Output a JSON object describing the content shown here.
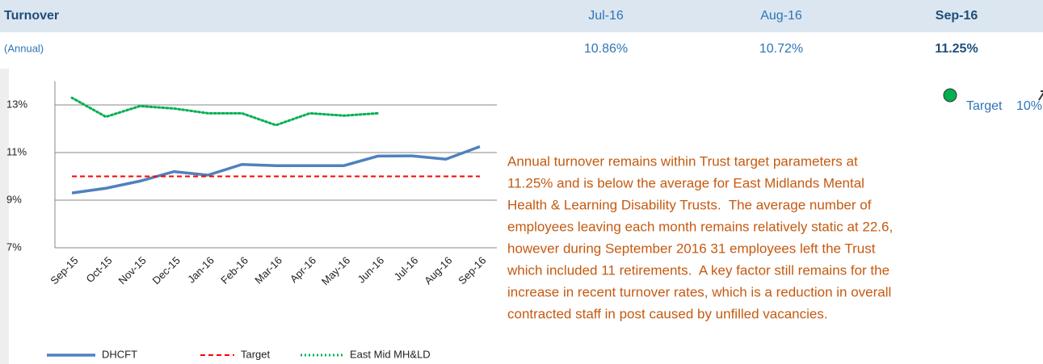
{
  "header": {
    "title": "Turnover",
    "subtitle": "(Annual)",
    "months": [
      "Jul-16",
      "Aug-16",
      "Sep-16"
    ],
    "values": [
      "10.86%",
      "10.72%",
      "11.25%"
    ]
  },
  "target": {
    "label": "Target",
    "value": "10%"
  },
  "commentary": [
    "Annual turnover remains within Trust target parameters at",
    "11.25% and is below the average for East Midlands Mental",
    "Health & Learning Disability Trusts.  The average number of",
    "employees leaving each month remains relatively static at 22.6,",
    "however during September 2016 31 employees left the Trust",
    "which included 11 retirements.  A key factor still remains for the",
    "increase in recent turnover rates, which is a reduction in overall",
    "contracted staff in post caused by unfilled vacancies."
  ],
  "chart_data": {
    "type": "line",
    "categories": [
      "Sep-15",
      "Oct-15",
      "Nov-15",
      "Dec-15",
      "Jan-16",
      "Feb-16",
      "Mar-16",
      "Apr-16",
      "May-16",
      "Jun-16",
      "Jul-16",
      "Aug-16",
      "Sep-16"
    ],
    "series": [
      {
        "name": "DHCFT",
        "color": "#4f81bd",
        "values": [
          9.3,
          9.5,
          9.8,
          10.2,
          10.05,
          10.5,
          10.45,
          10.45,
          10.45,
          10.85,
          10.86,
          10.72,
          11.25
        ]
      },
      {
        "name": "Target",
        "color": "#ff0000",
        "values": [
          10,
          10,
          10,
          10,
          10,
          10,
          10,
          10,
          10,
          10,
          10,
          10,
          10
        ]
      },
      {
        "name": "East Mid MH&LD",
        "color": "#00b050",
        "values": [
          13.3,
          12.5,
          12.95,
          12.85,
          12.65,
          12.65,
          12.15,
          12.65,
          12.55,
          12.65,
          null,
          null,
          null
        ]
      }
    ],
    "ylim": [
      7,
      14
    ],
    "yticks": [
      {
        "value": 7,
        "label": "7%"
      },
      {
        "value": 9,
        "label": "9%"
      },
      {
        "value": 11,
        "label": "11%"
      },
      {
        "value": 13,
        "label": "13%"
      }
    ],
    "grid": true,
    "legend": "bottom"
  }
}
